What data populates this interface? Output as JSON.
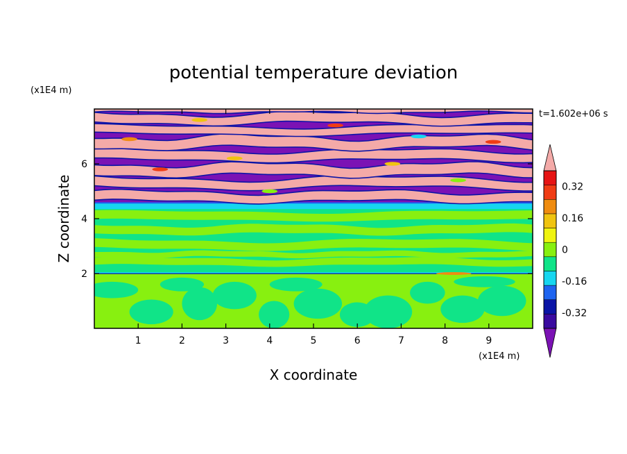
{
  "chart_data": {
    "type": "heatmap",
    "title": "potential temperature deviation",
    "xlabel": "X coordinate",
    "ylabel": "Z coordinate",
    "x_unit": "(x1E4 m)",
    "y_unit": "(x1E4 m)",
    "time_label": "t=1.602e+06 s",
    "xlim": [
      0,
      10
    ],
    "ylim": [
      0,
      8
    ],
    "x_ticks": [
      "1",
      "2",
      "3",
      "4",
      "5",
      "6",
      "7",
      "8",
      "9"
    ],
    "y_ticks": [
      "2",
      "4",
      "6"
    ],
    "colorbar": {
      "levels": [
        -0.48,
        -0.4,
        -0.32,
        -0.24,
        -0.16,
        -0.08,
        0,
        0.08,
        0.16,
        0.24,
        0.32,
        0.4,
        0.48
      ],
      "tick_labels": [
        "0.32",
        "0.16",
        "0",
        "-0.16",
        "-0.32"
      ],
      "tick_values": [
        0.32,
        0.16,
        0,
        -0.16,
        -0.32
      ],
      "colors": [
        "#7b12b4",
        "#3a0aa0",
        "#0a14a6",
        "#1e64f0",
        "#16d6f0",
        "#10e488",
        "#88f010",
        "#f0f410",
        "#f0c410",
        "#f08c10",
        "#f03c14",
        "#e61414",
        "#f4aaa8"
      ],
      "extend": "both"
    },
    "regions": [
      {
        "name": "lower layer",
        "z_range": [
          0,
          2
        ],
        "dominant": "0 to 0.08",
        "features": "green (-0.08 to 0) blobs"
      },
      {
        "name": "middle layer",
        "z_range": [
          2,
          4.5
        ],
        "dominant": "-0.08 to 0.08 alternating bands"
      },
      {
        "name": "upper layer",
        "z_range": [
          4.5,
          8
        ],
        "dominant": "alternating bands of >0.48 and <-0.48 with thin intermediate contours"
      }
    ]
  }
}
